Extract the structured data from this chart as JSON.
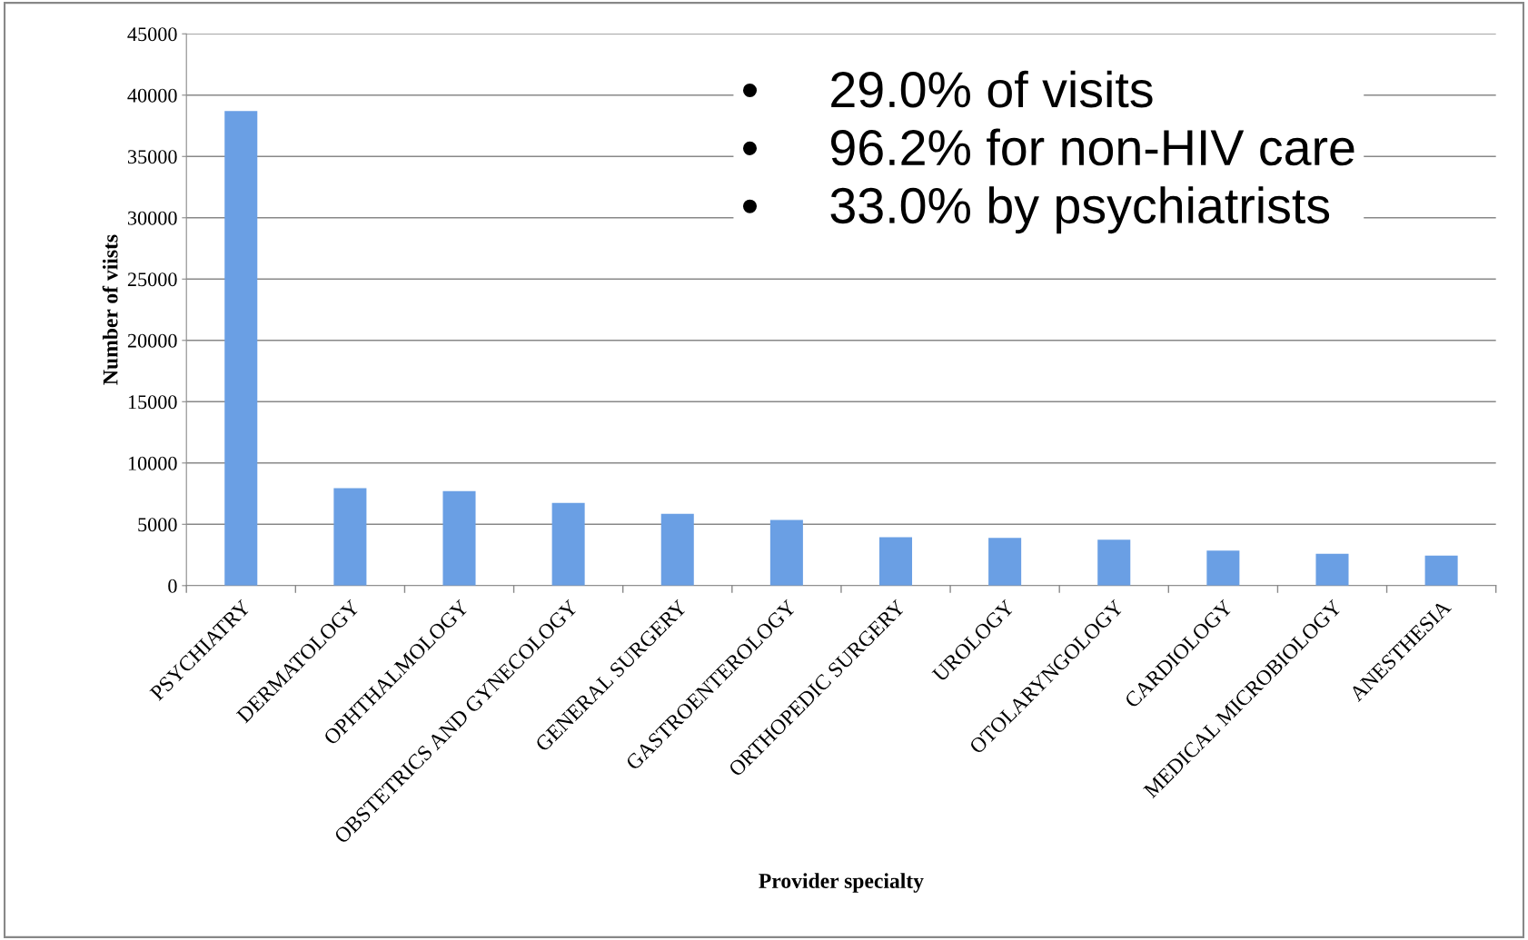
{
  "chart_data": {
    "type": "bar",
    "xlabel": "Provider specialty",
    "ylabel": "Number of viists",
    "categories": [
      "PSYCHIATRY",
      "DERMATOLOGY",
      "OPHTHALMOLOGY",
      "OBSTETRICS AND GYNECOLOGY",
      "GENERAL SURGERY",
      "GASTROENTEROLOGY",
      "ORTHOPEDIC SURGERY",
      "UROLOGY",
      "OTOLARYNGOLOGY",
      "CARDIOLOGY",
      "MEDICAL MICROBIOLOGY",
      "ANESTHESIA"
    ],
    "values": [
      38700,
      7950,
      7700,
      6750,
      5850,
      5350,
      3950,
      3900,
      3750,
      2850,
      2600,
      2450
    ],
    "color": "#6a9fe4",
    "ylim": [
      0,
      45000
    ],
    "yticks": [
      0,
      5000,
      10000,
      15000,
      20000,
      25000,
      30000,
      35000,
      40000,
      45000
    ],
    "grid": "y",
    "annotations": [
      "•     29.0% of visits",
      "•     96.2% for non-HIV care",
      "•     33.0% by psychiatrists"
    ]
  }
}
